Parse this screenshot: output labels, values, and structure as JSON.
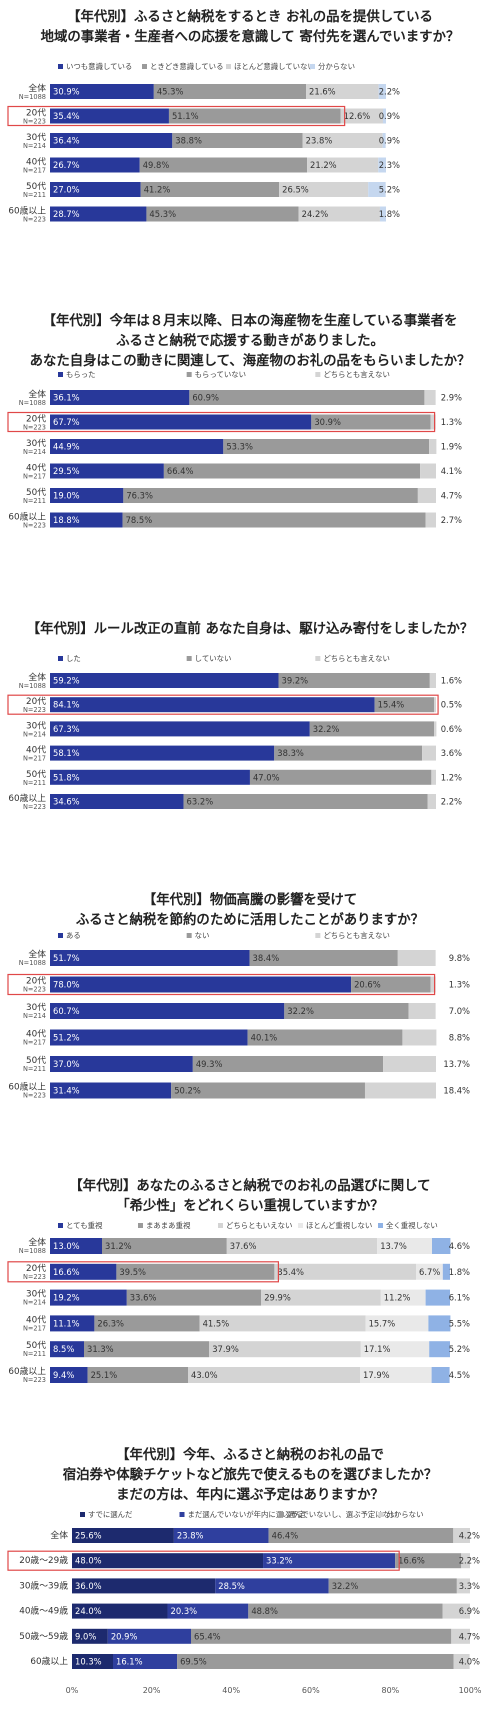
{
  "colors": {
    "dark_navy": "#1d2a6e",
    "navy": "#28389a",
    "blue": "#2f3f9e",
    "mid_gray": "#9a9a9a",
    "light_gray": "#d4d4d4",
    "pale_blue": "#c5d7ef",
    "sky_blue": "#8fb2e5",
    "highlight": "#e04848"
  },
  "chart_data": [
    {
      "type": "bar",
      "stacked": "horizontal-100",
      "title": "【年代別】ふるさと納税をするとき お礼の品を提供している\n地域の事業者・生産者への応援を意識して 寄付先を選んでいますか？",
      "categories": [
        {
          "label": "全体",
          "sub": "N=1088"
        },
        {
          "label": "20代",
          "sub": "N=223"
        },
        {
          "label": "30代",
          "sub": "N=214"
        },
        {
          "label": "40代",
          "sub": "N=217"
        },
        {
          "label": "50代",
          "sub": "N=211"
        },
        {
          "label": "60歳以上",
          "sub": "N=223"
        }
      ],
      "highlight_row": 1,
      "series": [
        {
          "name": "いつも意識している",
          "color": "#28389a",
          "values": [
            30.9,
            35.4,
            36.4,
            26.7,
            27.0,
            28.7
          ]
        },
        {
          "name": "ときどき意識している",
          "color": "#9a9a9a",
          "values": [
            45.3,
            51.1,
            38.8,
            49.8,
            41.2,
            45.3
          ]
        },
        {
          "name": "ほとんど意識していない",
          "color": "#d4d4d4",
          "values": [
            21.6,
            12.6,
            23.8,
            21.2,
            26.5,
            24.2
          ]
        },
        {
          "name": "分からない",
          "color": "#c5d7ef",
          "values": [
            2.2,
            0.9,
            0.9,
            2.3,
            5.2,
            1.8
          ]
        }
      ]
    },
    {
      "type": "bar",
      "stacked": "horizontal-100",
      "title": "【年代別】今年は８月末以降、日本の海産物を生産している事業者を\nふるさと納税で応援する動きがありました。\nあなた自身はこの動きに関連して、海産物のお礼の品をもらいましたか？",
      "categories": [
        {
          "label": "全体",
          "sub": "N=1088"
        },
        {
          "label": "20代",
          "sub": "N=223"
        },
        {
          "label": "30代",
          "sub": "N=214"
        },
        {
          "label": "40代",
          "sub": "N=217"
        },
        {
          "label": "50代",
          "sub": "N=211"
        },
        {
          "label": "60歳以上",
          "sub": "N=223"
        }
      ],
      "highlight_row": 1,
      "series": [
        {
          "name": "もらった",
          "color": "#28389a",
          "values": [
            36.1,
            67.7,
            44.9,
            29.5,
            19.0,
            18.8
          ]
        },
        {
          "name": "もらっていない",
          "color": "#9a9a9a",
          "values": [
            60.9,
            30.9,
            53.3,
            66.4,
            76.3,
            78.5
          ]
        },
        {
          "name": "どちらとも言えない",
          "color": "#d4d4d4",
          "values": [
            2.9,
            1.3,
            1.9,
            4.1,
            4.7,
            2.7
          ]
        }
      ]
    },
    {
      "type": "bar",
      "stacked": "horizontal-100",
      "title": "【年代別】ルール改正の直前 あなた自身は、駆け込み寄付をしましたか？",
      "categories": [
        {
          "label": "全体",
          "sub": "N=1088"
        },
        {
          "label": "20代",
          "sub": "N=223"
        },
        {
          "label": "30代",
          "sub": "N=214"
        },
        {
          "label": "40代",
          "sub": "N=217"
        },
        {
          "label": "50代",
          "sub": "N=211"
        },
        {
          "label": "60歳以上",
          "sub": "N=223"
        }
      ],
      "highlight_row": 1,
      "series": [
        {
          "name": "した",
          "color": "#28389a",
          "values": [
            59.2,
            84.1,
            67.3,
            58.1,
            51.8,
            34.6
          ]
        },
        {
          "name": "していない",
          "color": "#9a9a9a",
          "values": [
            39.2,
            15.4,
            32.2,
            38.3,
            47.0,
            63.2
          ]
        },
        {
          "name": "どちらとも言えない",
          "color": "#d4d4d4",
          "values": [
            1.6,
            0.5,
            0.6,
            3.6,
            1.2,
            2.2
          ]
        }
      ]
    },
    {
      "type": "bar",
      "stacked": "horizontal-100",
      "title": "【年代別】物価高騰の影響を受けて\nふるさと納税を節約のために活用したことがありますか？",
      "categories": [
        {
          "label": "全体",
          "sub": "N=1088"
        },
        {
          "label": "20代",
          "sub": "N=223"
        },
        {
          "label": "30代",
          "sub": "N=214"
        },
        {
          "label": "40代",
          "sub": "N=217"
        },
        {
          "label": "50代",
          "sub": "N=211"
        },
        {
          "label": "60歳以上",
          "sub": "N=223"
        }
      ],
      "highlight_row": 1,
      "series": [
        {
          "name": "ある",
          "color": "#28389a",
          "values": [
            51.7,
            78.0,
            60.7,
            51.2,
            37.0,
            31.4
          ]
        },
        {
          "name": "ない",
          "color": "#9a9a9a",
          "values": [
            38.4,
            20.6,
            32.2,
            40.1,
            49.3,
            50.2
          ]
        },
        {
          "name": "どちらとも言えない",
          "color": "#d4d4d4",
          "values": [
            9.8,
            1.3,
            7.0,
            8.8,
            13.7,
            18.4
          ]
        }
      ]
    },
    {
      "type": "bar",
      "stacked": "horizontal-100",
      "title": "【年代別】あなたのふるさと納税でのお礼の品選びに関して\n「希少性」をどれくらい重視していますか？",
      "categories": [
        {
          "label": "全体",
          "sub": "N=1088"
        },
        {
          "label": "20代",
          "sub": "N=223"
        },
        {
          "label": "30代",
          "sub": "N=214"
        },
        {
          "label": "40代",
          "sub": "N=217"
        },
        {
          "label": "50代",
          "sub": "N=211"
        },
        {
          "label": "60歳以上",
          "sub": "N=223"
        }
      ],
      "highlight_row": 1,
      "series": [
        {
          "name": "とても重視",
          "color": "#28389a",
          "values": [
            13.0,
            16.6,
            19.2,
            11.1,
            8.5,
            9.4
          ]
        },
        {
          "name": "まあまあ重視",
          "color": "#9a9a9a",
          "values": [
            31.2,
            39.5,
            33.6,
            26.3,
            31.3,
            25.1
          ]
        },
        {
          "name": "どちらともいえない",
          "color": "#d4d4d4",
          "values": [
            37.6,
            35.4,
            29.9,
            41.5,
            37.9,
            43.0
          ]
        },
        {
          "name": "ほとんど重視しない",
          "color": "#e9e9e9",
          "values": [
            13.7,
            6.7,
            11.2,
            15.7,
            17.1,
            17.9
          ]
        },
        {
          "name": "全く重視しない",
          "color": "#8fb2e5",
          "values": [
            4.6,
            1.8,
            6.1,
            5.5,
            5.2,
            4.5
          ]
        }
      ]
    },
    {
      "type": "bar",
      "stacked": "horizontal-100",
      "title": "【年代別】今年、ふるさと納税のお礼の品で\n宿泊券や体験チケットなど旅先で使えるものを選びましたか？\nまだの方は、年内に選ぶ予定はありますか？",
      "categories": [
        {
          "label": "全体",
          "sub": ""
        },
        {
          "label": "20歳～29歳",
          "sub": ""
        },
        {
          "label": "30歳～39歳",
          "sub": ""
        },
        {
          "label": "40歳～49歳",
          "sub": ""
        },
        {
          "label": "50歳～59歳",
          "sub": ""
        },
        {
          "label": "60歳以上",
          "sub": ""
        }
      ],
      "highlight_row": 1,
      "xticks": [
        "0%",
        "20%",
        "40%",
        "60%",
        "80%",
        "100%"
      ],
      "series": [
        {
          "name": "すでに選んだ",
          "color": "#1d2a6e",
          "values": [
            25.6,
            48.0,
            36.0,
            24.0,
            9.0,
            10.3
          ]
        },
        {
          "name": "まだ選んでいないが年内に選ぶ予定",
          "color": "#2f3f9e",
          "values": [
            23.8,
            33.2,
            28.5,
            20.3,
            20.9,
            16.1
          ]
        },
        {
          "name": "選んでいないし、選ぶ予定はない",
          "color": "#9a9a9a",
          "values": [
            46.4,
            16.6,
            32.2,
            48.8,
            65.4,
            69.5
          ]
        },
        {
          "name": "分からない",
          "color": "#d4d4d4",
          "values": [
            4.2,
            2.2,
            3.3,
            6.9,
            4.7,
            4.0
          ]
        }
      ]
    }
  ]
}
